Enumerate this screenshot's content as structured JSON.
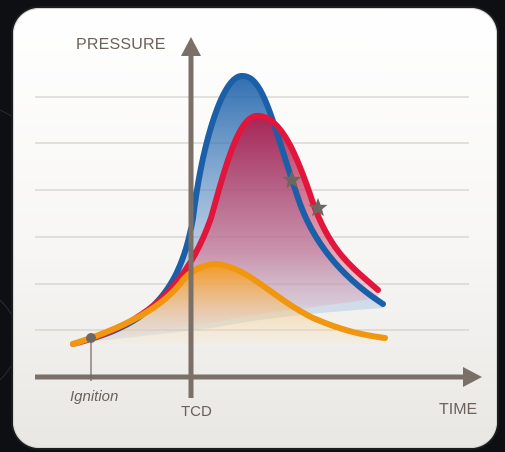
{
  "diagram": {
    "y_axis_label": "PRESSURE",
    "x_axis_label": "TIME",
    "tcd_label": "TCD",
    "ignition_label": "Ignition",
    "colors": {
      "axis": "#7a7068",
      "gridline": "#c9c6c2",
      "blue_curve": "#1a5fa8",
      "red_curve": "#e0163c",
      "orange_curve": "#f0960f",
      "star_markers": "#6e6660",
      "ignition_marker": "#6e6660"
    },
    "markers": [
      "star-marker",
      "star-marker",
      "ignition-dot"
    ]
  }
}
